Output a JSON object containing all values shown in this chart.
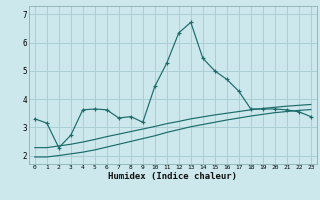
{
  "title": "",
  "xlabel": "Humidex (Indice chaleur)",
  "ylabel": "",
  "bg_color": "#cde8ec",
  "grid_color": "#aacfd4",
  "line_color": "#1a6b6b",
  "xlim": [
    -0.5,
    23.5
  ],
  "ylim": [
    1.7,
    7.3
  ],
  "xticks": [
    0,
    1,
    2,
    3,
    4,
    5,
    6,
    7,
    8,
    9,
    10,
    11,
    12,
    13,
    14,
    15,
    16,
    17,
    18,
    19,
    20,
    21,
    22,
    23
  ],
  "yticks": [
    2,
    3,
    4,
    5,
    6,
    7
  ],
  "line1_x": [
    0,
    1,
    2,
    3,
    4,
    5,
    6,
    7,
    8,
    9,
    10,
    11,
    12,
    13,
    14,
    15,
    16,
    17,
    18,
    19,
    20,
    21,
    22,
    23
  ],
  "line1_y": [
    3.3,
    3.15,
    2.28,
    2.72,
    3.62,
    3.65,
    3.62,
    3.33,
    3.38,
    3.18,
    4.45,
    5.28,
    6.35,
    6.72,
    5.45,
    5.0,
    4.7,
    4.28,
    3.65,
    3.65,
    3.65,
    3.62,
    3.55,
    3.38
  ],
  "line2_x": [
    0,
    1,
    2,
    3,
    4,
    5,
    6,
    7,
    8,
    9,
    10,
    11,
    12,
    13,
    14,
    15,
    16,
    17,
    18,
    19,
    20,
    21,
    22,
    23
  ],
  "line2_y": [
    1.95,
    1.95,
    2.0,
    2.06,
    2.12,
    2.2,
    2.3,
    2.4,
    2.5,
    2.6,
    2.7,
    2.82,
    2.92,
    3.02,
    3.1,
    3.18,
    3.26,
    3.33,
    3.4,
    3.46,
    3.52,
    3.56,
    3.6,
    3.63
  ],
  "line3_x": [
    0,
    1,
    2,
    3,
    4,
    5,
    6,
    7,
    8,
    9,
    10,
    11,
    12,
    13,
    14,
    15,
    16,
    17,
    18,
    19,
    20,
    21,
    22,
    23
  ],
  "line3_y": [
    2.28,
    2.28,
    2.34,
    2.4,
    2.48,
    2.57,
    2.67,
    2.76,
    2.85,
    2.94,
    3.03,
    3.13,
    3.21,
    3.3,
    3.37,
    3.44,
    3.5,
    3.56,
    3.62,
    3.67,
    3.71,
    3.75,
    3.78,
    3.81
  ]
}
